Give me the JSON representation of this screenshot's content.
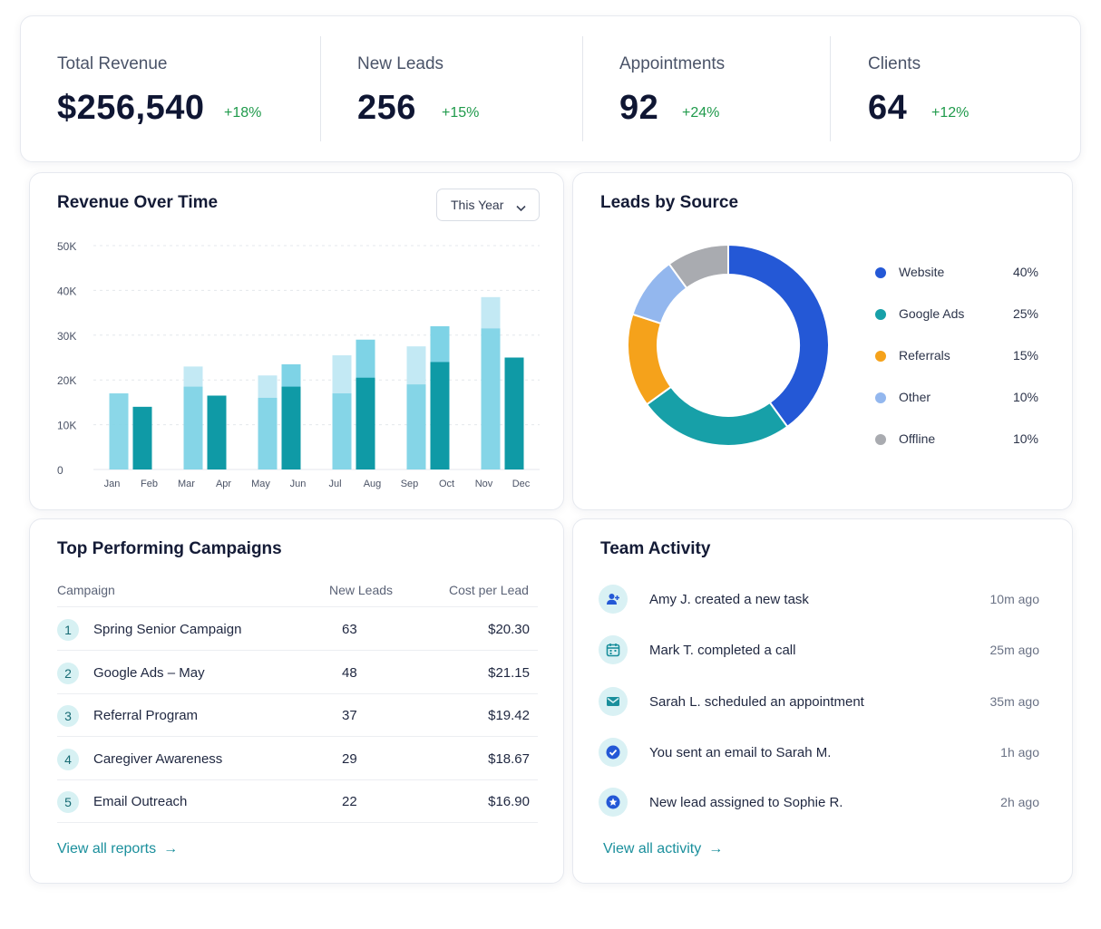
{
  "kpis": [
    {
      "label": "Total Revenue",
      "value": "$256,540",
      "delta": "+18%"
    },
    {
      "label": "New Leads",
      "value": "256",
      "delta": "+15%"
    },
    {
      "label": "Appointments",
      "value": "92",
      "delta": "+24%"
    },
    {
      "label": "Clients",
      "value": "64",
      "delta": "+12%"
    }
  ],
  "revenue": {
    "title": "Revenue Over Time",
    "range_select": "This Year"
  },
  "leads_source": {
    "title": "Leads by Source"
  },
  "chart_data": [
    {
      "type": "bar",
      "title": "Revenue Over Time",
      "categories": [
        "Jan",
        "Feb",
        "Mar",
        "Apr",
        "May",
        "Jun",
        "Jul",
        "Aug",
        "Sep",
        "Oct",
        "Nov",
        "Dec"
      ],
      "series": [
        {
          "values": [
            17000,
            14000,
            18500,
            16500,
            16000,
            18500,
            17000,
            20500,
            19000,
            24000,
            31500,
            25000
          ]
        },
        {
          "values": [
            null,
            null,
            23000,
            null,
            21000,
            23500,
            25500,
            29000,
            27500,
            32000,
            38500,
            null
          ]
        }
      ],
      "ylim": [
        0,
        50000
      ],
      "yticks": [
        "0",
        "10K",
        "20K",
        "30K",
        "40K",
        "50K"
      ],
      "grid": true,
      "colors": [
        "#0f9aa6",
        "#7ed3e6",
        "#c3e9f4"
      ]
    },
    {
      "type": "pie",
      "title": "Leads by Source",
      "labels": [
        "Website",
        "Google Ads",
        "Referrals",
        "Other",
        "Offline"
      ],
      "values": [
        40,
        25,
        15,
        10,
        10
      ],
      "display": [
        "40%",
        "25%",
        "15%",
        "10%",
        "10%"
      ],
      "colors": [
        "#2458d6",
        "#17a0a8",
        "#f5a21b",
        "#93b7ee",
        "#a9abb0"
      ],
      "legend": "right"
    }
  ],
  "campaigns": {
    "title": "Top Performing Campaigns",
    "headers": [
      "Campaign",
      "New Leads",
      "Cost per Lead"
    ],
    "rows": [
      {
        "rank": "1",
        "name": "Spring Senior Campaign",
        "leads": "63",
        "cost": "$20.30"
      },
      {
        "rank": "2",
        "name": "Google Ads – May",
        "leads": "48",
        "cost": "$21.15"
      },
      {
        "rank": "3",
        "name": "Referral Program",
        "leads": "37",
        "cost": "$19.42"
      },
      {
        "rank": "4",
        "name": "Caregiver Awareness",
        "leads": "29",
        "cost": "$18.67"
      },
      {
        "rank": "5",
        "name": "Email Outreach",
        "leads": "22",
        "cost": "$16.90"
      }
    ],
    "link": "View all reports",
    "arrow": "→"
  },
  "team": {
    "title": "Team Activity",
    "items": [
      {
        "icon": "user-plus-icon",
        "text": "Amy J. created a new task",
        "time": "10m ago"
      },
      {
        "icon": "calendar-icon",
        "text": "Mark T. completed a call",
        "time": "25m ago"
      },
      {
        "icon": "mail-icon",
        "text": "Sarah L. scheduled an appointment",
        "time": "35m ago"
      },
      {
        "icon": "check-circle-icon",
        "text": "You sent an email to Sarah M.",
        "time": "1h ago"
      },
      {
        "icon": "star-badge-icon",
        "text": "New lead assigned to Sophie R.",
        "time": "2h ago"
      }
    ],
    "link": "View all activity",
    "arrow": "→"
  }
}
